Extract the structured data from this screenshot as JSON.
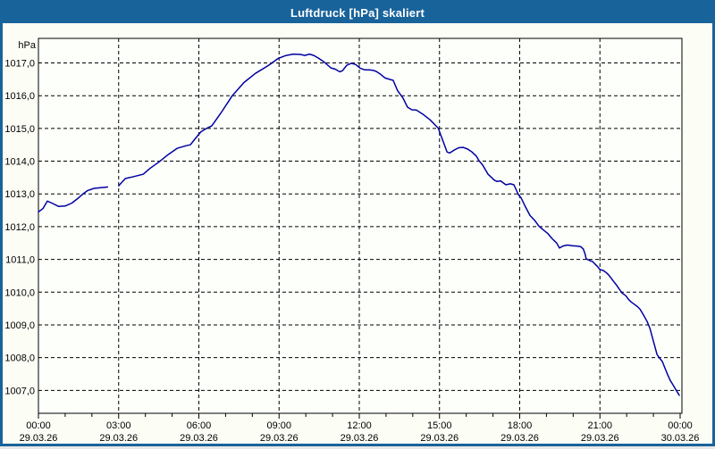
{
  "window": {
    "title": "Luftdruck [hPa] skaliert"
  },
  "colors": {
    "titlebar": "#19639b",
    "window_border": "#19639b",
    "content_bg": "#fcfef6",
    "plot_bg": "#fdfffb",
    "grid": "#000000",
    "axis": "#000000",
    "line": "#0000a0",
    "title_text": "#ffffff",
    "label_text": "#000000"
  },
  "chart_data": {
    "type": "line",
    "title": "Luftdruck [hPa] skaliert",
    "ylabel_unit": "hPa",
    "y_axis": {
      "min": 1006.3,
      "max": 1017.75,
      "grid_values": [
        1007,
        1008,
        1009,
        1010,
        1011,
        1012,
        1013,
        1014,
        1015,
        1016,
        1017
      ],
      "tick_labels": [
        "1007,0",
        "1008,0",
        "1009,0",
        "1010,0",
        "1011,0",
        "1012,0",
        "1013,0",
        "1014,0",
        "1015,0",
        "1016,0",
        "1017,0"
      ],
      "grid_style": "dashed"
    },
    "x_axis": {
      "range_hours": [
        0,
        24
      ],
      "minor_step_hours": 1,
      "major_ticks": [
        {
          "hour": 0,
          "time": "00:00",
          "date": "29.03.26"
        },
        {
          "hour": 3,
          "time": "03:00",
          "date": "29.03.26"
        },
        {
          "hour": 6,
          "time": "06:00",
          "date": "29.03.26"
        },
        {
          "hour": 9,
          "time": "09:00",
          "date": "29.03.26"
        },
        {
          "hour": 12,
          "time": "12:00",
          "date": "29.03.26"
        },
        {
          "hour": 15,
          "time": "15:00",
          "date": "29.03.26"
        },
        {
          "hour": 18,
          "time": "18:00",
          "date": "29.03.26"
        },
        {
          "hour": 21,
          "time": "21:00",
          "date": "29.03.26"
        },
        {
          "hour": 24,
          "time": "00:00",
          "date": "30.03.26"
        }
      ],
      "grid_style": "dashed"
    },
    "series": [
      {
        "name": "Luftdruck [hPa] skaliert",
        "color": "#0000a0",
        "x_unit": "minutes_since_00:00_29.03.26",
        "segments": [
          [
            [
              0,
              1012.45
            ],
            [
              10,
              1012.55
            ],
            [
              20,
              1012.78
            ],
            [
              30,
              1012.72
            ],
            [
              45,
              1012.62
            ],
            [
              60,
              1012.63
            ],
            [
              75,
              1012.72
            ],
            [
              90,
              1012.88
            ],
            [
              100,
              1013.0
            ],
            [
              110,
              1013.1
            ],
            [
              125,
              1013.17
            ],
            [
              140,
              1013.19
            ],
            [
              155,
              1013.21
            ]
          ],
          [
            [
              180,
              1013.25
            ],
            [
              195,
              1013.47
            ],
            [
              211,
              1013.52
            ],
            [
              235,
              1013.6
            ],
            [
              251,
              1013.79
            ],
            [
              271,
              1013.98
            ],
            [
              291,
              1014.2
            ],
            [
              311,
              1014.39
            ],
            [
              331,
              1014.47
            ],
            [
              341,
              1014.5
            ],
            [
              355,
              1014.74
            ],
            [
              365,
              1014.9
            ],
            [
              377,
              1015.0
            ],
            [
              389,
              1015.08
            ],
            [
              411,
              1015.5
            ],
            [
              435,
              1016.0
            ],
            [
              461,
              1016.4
            ],
            [
              487,
              1016.68
            ],
            [
              511,
              1016.88
            ],
            [
              521,
              1016.97
            ],
            [
              538,
              1017.14
            ],
            [
              556,
              1017.23
            ],
            [
              572,
              1017.27
            ],
            [
              588,
              1017.26
            ],
            [
              598,
              1017.23
            ],
            [
              608,
              1017.27
            ],
            [
              618,
              1017.23
            ],
            [
              628,
              1017.15
            ],
            [
              642,
              1017.02
            ],
            [
              656,
              1016.85
            ],
            [
              666,
              1016.81
            ],
            [
              676,
              1016.73
            ],
            [
              682,
              1016.76
            ],
            [
              692,
              1016.93
            ],
            [
              702,
              1016.99
            ],
            [
              712,
              1016.95
            ],
            [
              722,
              1016.84
            ],
            [
              732,
              1016.79
            ],
            [
              742,
              1016.79
            ],
            [
              752,
              1016.77
            ],
            [
              758,
              1016.74
            ],
            [
              768,
              1016.65
            ],
            [
              778,
              1016.54
            ],
            [
              788,
              1016.5
            ],
            [
              796,
              1016.47
            ],
            [
              806,
              1016.15
            ],
            [
              818,
              1015.93
            ],
            [
              828,
              1015.65
            ],
            [
              838,
              1015.57
            ],
            [
              848,
              1015.56
            ],
            [
              862,
              1015.44
            ],
            [
              879,
              1015.26
            ],
            [
              897,
              1015.01
            ],
            [
              907,
              1014.65
            ],
            [
              917,
              1014.28
            ],
            [
              923,
              1014.25
            ],
            [
              933,
              1014.34
            ],
            [
              943,
              1014.41
            ],
            [
              953,
              1014.42
            ],
            [
              963,
              1014.37
            ],
            [
              973,
              1014.28
            ],
            [
              983,
              1014.15
            ],
            [
              989,
              1014.01
            ],
            [
              997,
              1013.88
            ],
            [
              1009,
              1013.6
            ],
            [
              1023,
              1013.42
            ],
            [
              1029,
              1013.38
            ],
            [
              1037,
              1013.4
            ],
            [
              1049,
              1013.28
            ],
            [
              1059,
              1013.31
            ],
            [
              1067,
              1013.28
            ],
            [
              1077,
              1012.98
            ],
            [
              1083,
              1012.88
            ],
            [
              1093,
              1012.6
            ],
            [
              1103,
              1012.34
            ],
            [
              1113,
              1012.2
            ],
            [
              1123,
              1012.02
            ],
            [
              1133,
              1011.9
            ],
            [
              1143,
              1011.79
            ],
            [
              1153,
              1011.63
            ],
            [
              1163,
              1011.5
            ],
            [
              1169,
              1011.35
            ],
            [
              1177,
              1011.41
            ],
            [
              1187,
              1011.44
            ],
            [
              1197,
              1011.42
            ],
            [
              1207,
              1011.41
            ],
            [
              1217,
              1011.39
            ],
            [
              1223,
              1011.31
            ],
            [
              1227,
              1011.15
            ],
            [
              1229,
              1011.02
            ],
            [
              1238,
              1010.96
            ],
            [
              1244,
              1010.93
            ],
            [
              1248,
              1010.87
            ],
            [
              1254,
              1010.79
            ],
            [
              1260,
              1010.69
            ],
            [
              1268,
              1010.66
            ],
            [
              1274,
              1010.6
            ],
            [
              1280,
              1010.52
            ],
            [
              1290,
              1010.34
            ],
            [
              1298,
              1010.2
            ],
            [
              1304,
              1010.08
            ],
            [
              1310,
              1009.97
            ],
            [
              1318,
              1009.89
            ],
            [
              1324,
              1009.78
            ],
            [
              1330,
              1009.7
            ],
            [
              1338,
              1009.62
            ],
            [
              1344,
              1009.56
            ],
            [
              1350,
              1009.48
            ],
            [
              1360,
              1009.25
            ],
            [
              1366,
              1009.1
            ],
            [
              1372,
              1008.9
            ],
            [
              1378,
              1008.6
            ],
            [
              1384,
              1008.3
            ],
            [
              1388,
              1008.1
            ],
            [
              1394,
              1007.98
            ],
            [
              1400,
              1007.88
            ],
            [
              1406,
              1007.68
            ],
            [
              1412,
              1007.48
            ],
            [
              1418,
              1007.3
            ],
            [
              1424,
              1007.17
            ],
            [
              1430,
              1007.03
            ],
            [
              1435,
              1006.92
            ],
            [
              1438,
              1006.85
            ]
          ]
        ]
      }
    ]
  }
}
